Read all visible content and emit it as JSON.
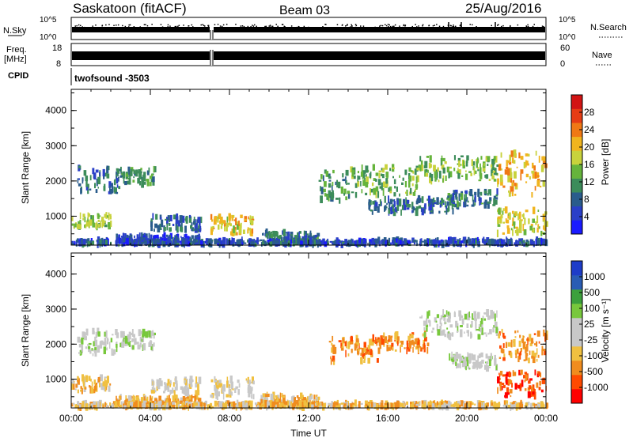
{
  "header": {
    "station": "Saskatoon (fitACF)",
    "beam": "Beam 03",
    "date": "25/Aug/2016"
  },
  "nsky_panel": {
    "left_label": "N.Sky",
    "left_ticks": [
      "10^5",
      "10^0"
    ],
    "right_label": "N.Search",
    "right_ticks": [
      "10^5",
      "10^0"
    ]
  },
  "freq_panel": {
    "left_label_1": "Freq.",
    "left_label_2": "[MHz]",
    "left_ticks": [
      "18",
      "8"
    ],
    "right_label": "Nave",
    "right_ticks": [
      "60",
      "0"
    ]
  },
  "cpid": {
    "label": "CPID",
    "value": "twofsound -3503"
  },
  "colors": {
    "power_scale": [
      "#1a1aff",
      "#2a3fc8",
      "#2a5c8c",
      "#3c8c5a",
      "#66b43c",
      "#c8d23c",
      "#f0b41e",
      "#f07814",
      "#e63c14",
      "#d21414"
    ],
    "velocity_scale": [
      "#ff0000",
      "#ff4a00",
      "#f08c1e",
      "#f0c040",
      "#c8c8c8",
      "#c8c8c8",
      "#78c83c",
      "#3ca03c",
      "#2a5cb4",
      "#1e3cc8"
    ]
  },
  "chart_data": [
    {
      "type": "heatmap",
      "name": "power",
      "ylabel": "Slant Range [km]",
      "yticks": [
        "1000",
        "2000",
        "3000",
        "4000"
      ],
      "ylim": [
        180,
        4600
      ],
      "xlim": [
        0,
        24
      ],
      "colorbar_label": "Power [dB]",
      "colorbar_ticks": [
        "4",
        "8",
        "12",
        "16",
        "20",
        "24",
        "28"
      ],
      "colorbar_range": [
        0,
        30
      ],
      "regions": [
        {
          "t": [
            0.3,
            2.5
          ],
          "r": [
            1650,
            2400
          ],
          "v": 8
        },
        {
          "t": [
            2.5,
            4.2
          ],
          "r": [
            1900,
            2350
          ],
          "v": 11
        },
        {
          "t": [
            0.0,
            2.0
          ],
          "r": [
            700,
            1050
          ],
          "v": 14
        },
        {
          "t": [
            2.2,
            6.5
          ],
          "r": [
            250,
            450
          ],
          "v": 5
        },
        {
          "t": [
            4.0,
            6.5
          ],
          "r": [
            600,
            1000
          ],
          "v": 7
        },
        {
          "t": [
            7.0,
            9.2
          ],
          "r": [
            500,
            1000
          ],
          "v": 18
        },
        {
          "t": [
            9.5,
            12.5
          ],
          "r": [
            250,
            550
          ],
          "v": 9
        },
        {
          "t": [
            12.5,
            14.0
          ],
          "r": [
            1400,
            2300
          ],
          "v": 10
        },
        {
          "t": [
            14.0,
            17.5
          ],
          "r": [
            1600,
            2400
          ],
          "v": 13
        },
        {
          "t": [
            15.0,
            19.5
          ],
          "r": [
            1100,
            1500
          ],
          "v": 8
        },
        {
          "t": [
            17.5,
            21.5
          ],
          "r": [
            2000,
            2700
          ],
          "v": 14
        },
        {
          "t": [
            19.0,
            21.5
          ],
          "r": [
            1300,
            1700
          ],
          "v": 9
        },
        {
          "t": [
            21.5,
            24.0
          ],
          "r": [
            1600,
            2800
          ],
          "v": 20
        },
        {
          "t": [
            21.5,
            24.0
          ],
          "r": [
            500,
            1200
          ],
          "v": 17
        },
        {
          "t": [
            0.0,
            24.0
          ],
          "r": [
            200,
            320
          ],
          "v": 6
        }
      ]
    },
    {
      "type": "heatmap",
      "name": "velocity",
      "xlabel": "Time UT",
      "ylabel": "Slant Range [km]",
      "yticks": [
        "1000",
        "2000",
        "3000",
        "4000"
      ],
      "xticks": [
        "00:00",
        "04:00",
        "08:00",
        "12:00",
        "16:00",
        "20:00",
        "00:00"
      ],
      "ylim": [
        180,
        4600
      ],
      "xlim": [
        0,
        24
      ],
      "colorbar_label": "Velocity [m s⁻¹]",
      "colorbar_ticks": [
        "-1000",
        "-500",
        "-100",
        "-25",
        "25",
        "100",
        "500",
        "1000"
      ],
      "regions": [
        {
          "t": [
            0.3,
            2.5
          ],
          "r": [
            1700,
            2400
          ],
          "v": 5
        },
        {
          "t": [
            2.5,
            4.2
          ],
          "r": [
            1900,
            2350
          ],
          "v": 5
        },
        {
          "t": [
            0.0,
            2.0
          ],
          "r": [
            650,
            1050
          ],
          "v": 3
        },
        {
          "t": [
            2.2,
            6.5
          ],
          "r": [
            250,
            500
          ],
          "v": 3
        },
        {
          "t": [
            4.0,
            6.5
          ],
          "r": [
            600,
            1000
          ],
          "v": 4
        },
        {
          "t": [
            7.0,
            9.2
          ],
          "r": [
            500,
            1000
          ],
          "v": 4
        },
        {
          "t": [
            9.5,
            12.5
          ],
          "r": [
            250,
            550
          ],
          "v": 3
        },
        {
          "t": [
            13.0,
            15.5
          ],
          "r": [
            1500,
            2200
          ],
          "v": 2
        },
        {
          "t": [
            15.5,
            18.0
          ],
          "r": [
            1800,
            2300
          ],
          "v": 2
        },
        {
          "t": [
            17.5,
            21.5
          ],
          "r": [
            2200,
            2900
          ],
          "v": 5
        },
        {
          "t": [
            19.0,
            21.5
          ],
          "r": [
            1300,
            1700
          ],
          "v": 5
        },
        {
          "t": [
            21.5,
            24.0
          ],
          "r": [
            1500,
            2400
          ],
          "v": 2
        },
        {
          "t": [
            21.5,
            24.0
          ],
          "r": [
            500,
            1200
          ],
          "v": 1
        },
        {
          "t": [
            0.0,
            24.0
          ],
          "r": [
            200,
            320
          ],
          "v": 3
        }
      ]
    }
  ]
}
